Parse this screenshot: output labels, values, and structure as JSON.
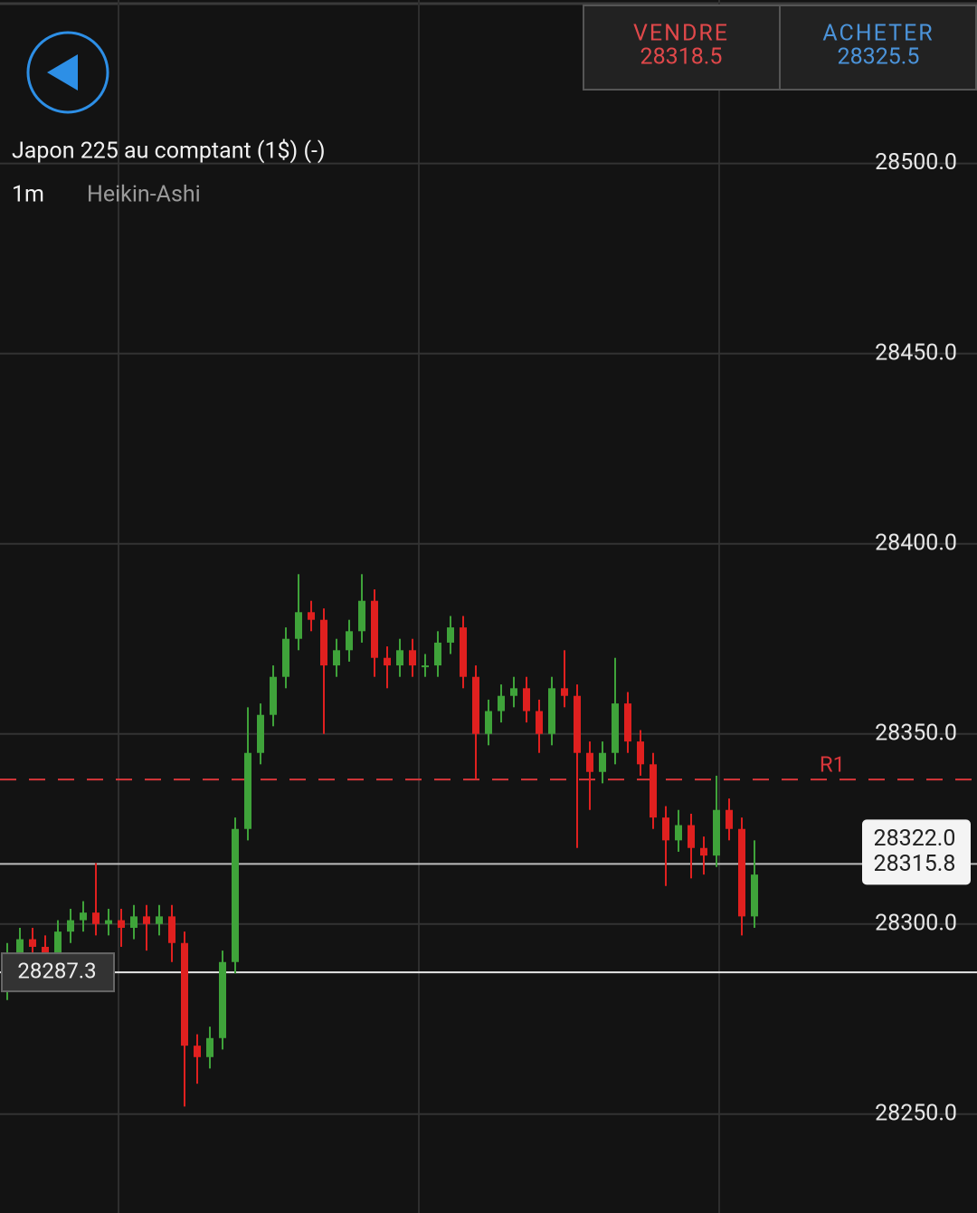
{
  "header": {
    "sell": {
      "label": "VENDRE",
      "price": "28318.5"
    },
    "buy": {
      "label": "ACHETER",
      "price": "28325.5"
    }
  },
  "instrument": {
    "title": "Japon 225 au comptant (1$) (-)",
    "timeframe": "1m",
    "chart_style": "Heikin-Ashi"
  },
  "chart_data": {
    "type": "candlestick",
    "open": [
      28290,
      28292,
      28296,
      28294,
      28290,
      28298,
      28301,
      28303,
      28300,
      28301,
      28299,
      28302,
      28300,
      28302,
      28295,
      28268,
      28265,
      28270,
      28290,
      28325,
      28345,
      28355,
      28365,
      28375,
      28382,
      28380,
      28368,
      28372,
      28377,
      28385,
      28370,
      28368,
      28372,
      28368,
      28368,
      28374,
      28378,
      28365,
      28350,
      28356,
      28360,
      28362,
      28356,
      28350,
      28362,
      28360,
      28345,
      28340,
      28345,
      28358,
      28348,
      28342,
      28328,
      28322,
      28326,
      28320,
      28318,
      28330,
      28325,
      28302
    ],
    "high": [
      28295,
      28299,
      28299,
      28297,
      28301,
      28304,
      28306,
      28316,
      28304,
      28304,
      28305,
      28305,
      28305,
      28305,
      28298,
      28271,
      28273,
      28293,
      28328,
      28357,
      28358,
      28368,
      28378,
      28392,
      28385,
      28383,
      28375,
      28380,
      28392,
      28388,
      28373,
      28375,
      28375,
      28371,
      28377,
      28381,
      28381,
      28368,
      28359,
      28363,
      28365,
      28365,
      28359,
      28365,
      28372,
      28363,
      28348,
      28348,
      28370,
      28361,
      28351,
      28345,
      28331,
      28330,
      28329,
      28323,
      28339,
      28333,
      28328,
      28322
    ],
    "low": [
      28280,
      28289,
      28291,
      28285,
      28287,
      28295,
      28298,
      28297,
      28297,
      28294,
      28296,
      28293,
      28297,
      28290,
      28252,
      28258,
      28262,
      28267,
      28287,
      28322,
      28342,
      28352,
      28362,
      28372,
      28377,
      28350,
      28365,
      28369,
      28374,
      28365,
      28362,
      28365,
      28365,
      28365,
      28365,
      28371,
      28362,
      28338,
      28347,
      28353,
      28357,
      28353,
      28345,
      28347,
      28357,
      28320,
      28330,
      28337,
      28342,
      28345,
      28339,
      28325,
      28310,
      28319,
      28312,
      28313,
      28315,
      28322,
      28297,
      28299
    ],
    "close": [
      28292,
      28296,
      28294,
      28290,
      28298,
      28301,
      28303,
      28300,
      28301,
      28299,
      28302,
      28300,
      28302,
      28295,
      28268,
      28265,
      28270,
      28290,
      28325,
      28345,
      28355,
      28365,
      28375,
      28382,
      28380,
      28368,
      28372,
      28377,
      28385,
      28370,
      28368,
      28372,
      28368,
      28368,
      28374,
      28378,
      28365,
      28350,
      28356,
      28360,
      28362,
      28356,
      28350,
      28362,
      28360,
      28345,
      28340,
      28345,
      28358,
      28348,
      28342,
      28328,
      28322,
      28326,
      28320,
      28318,
      28330,
      28325,
      28302,
      28313
    ],
    "up_color": "#3fa33a",
    "down_color": "#e0201f",
    "ylim": [
      28224,
      28543
    ],
    "yticks": [
      {
        "value": 28250,
        "label": "28250.0"
      },
      {
        "value": 28300,
        "label": "28300.0"
      },
      {
        "value": 28350,
        "label": "28350.0"
      },
      {
        "value": 28400,
        "label": "28400.0"
      },
      {
        "value": 28450,
        "label": "28450.0"
      },
      {
        "value": 28500,
        "label": "28500.0"
      }
    ],
    "grid": true,
    "resistance": {
      "name": "R1",
      "value": 28338,
      "color": "#d9363a"
    },
    "markers": [
      {
        "value": 28315.8,
        "color": "#bdbdbd"
      },
      {
        "value": 28287.3,
        "color": "#e6e6e6"
      }
    ],
    "overlapped_label": {
      "value": 28322,
      "label": "28322.0"
    }
  }
}
